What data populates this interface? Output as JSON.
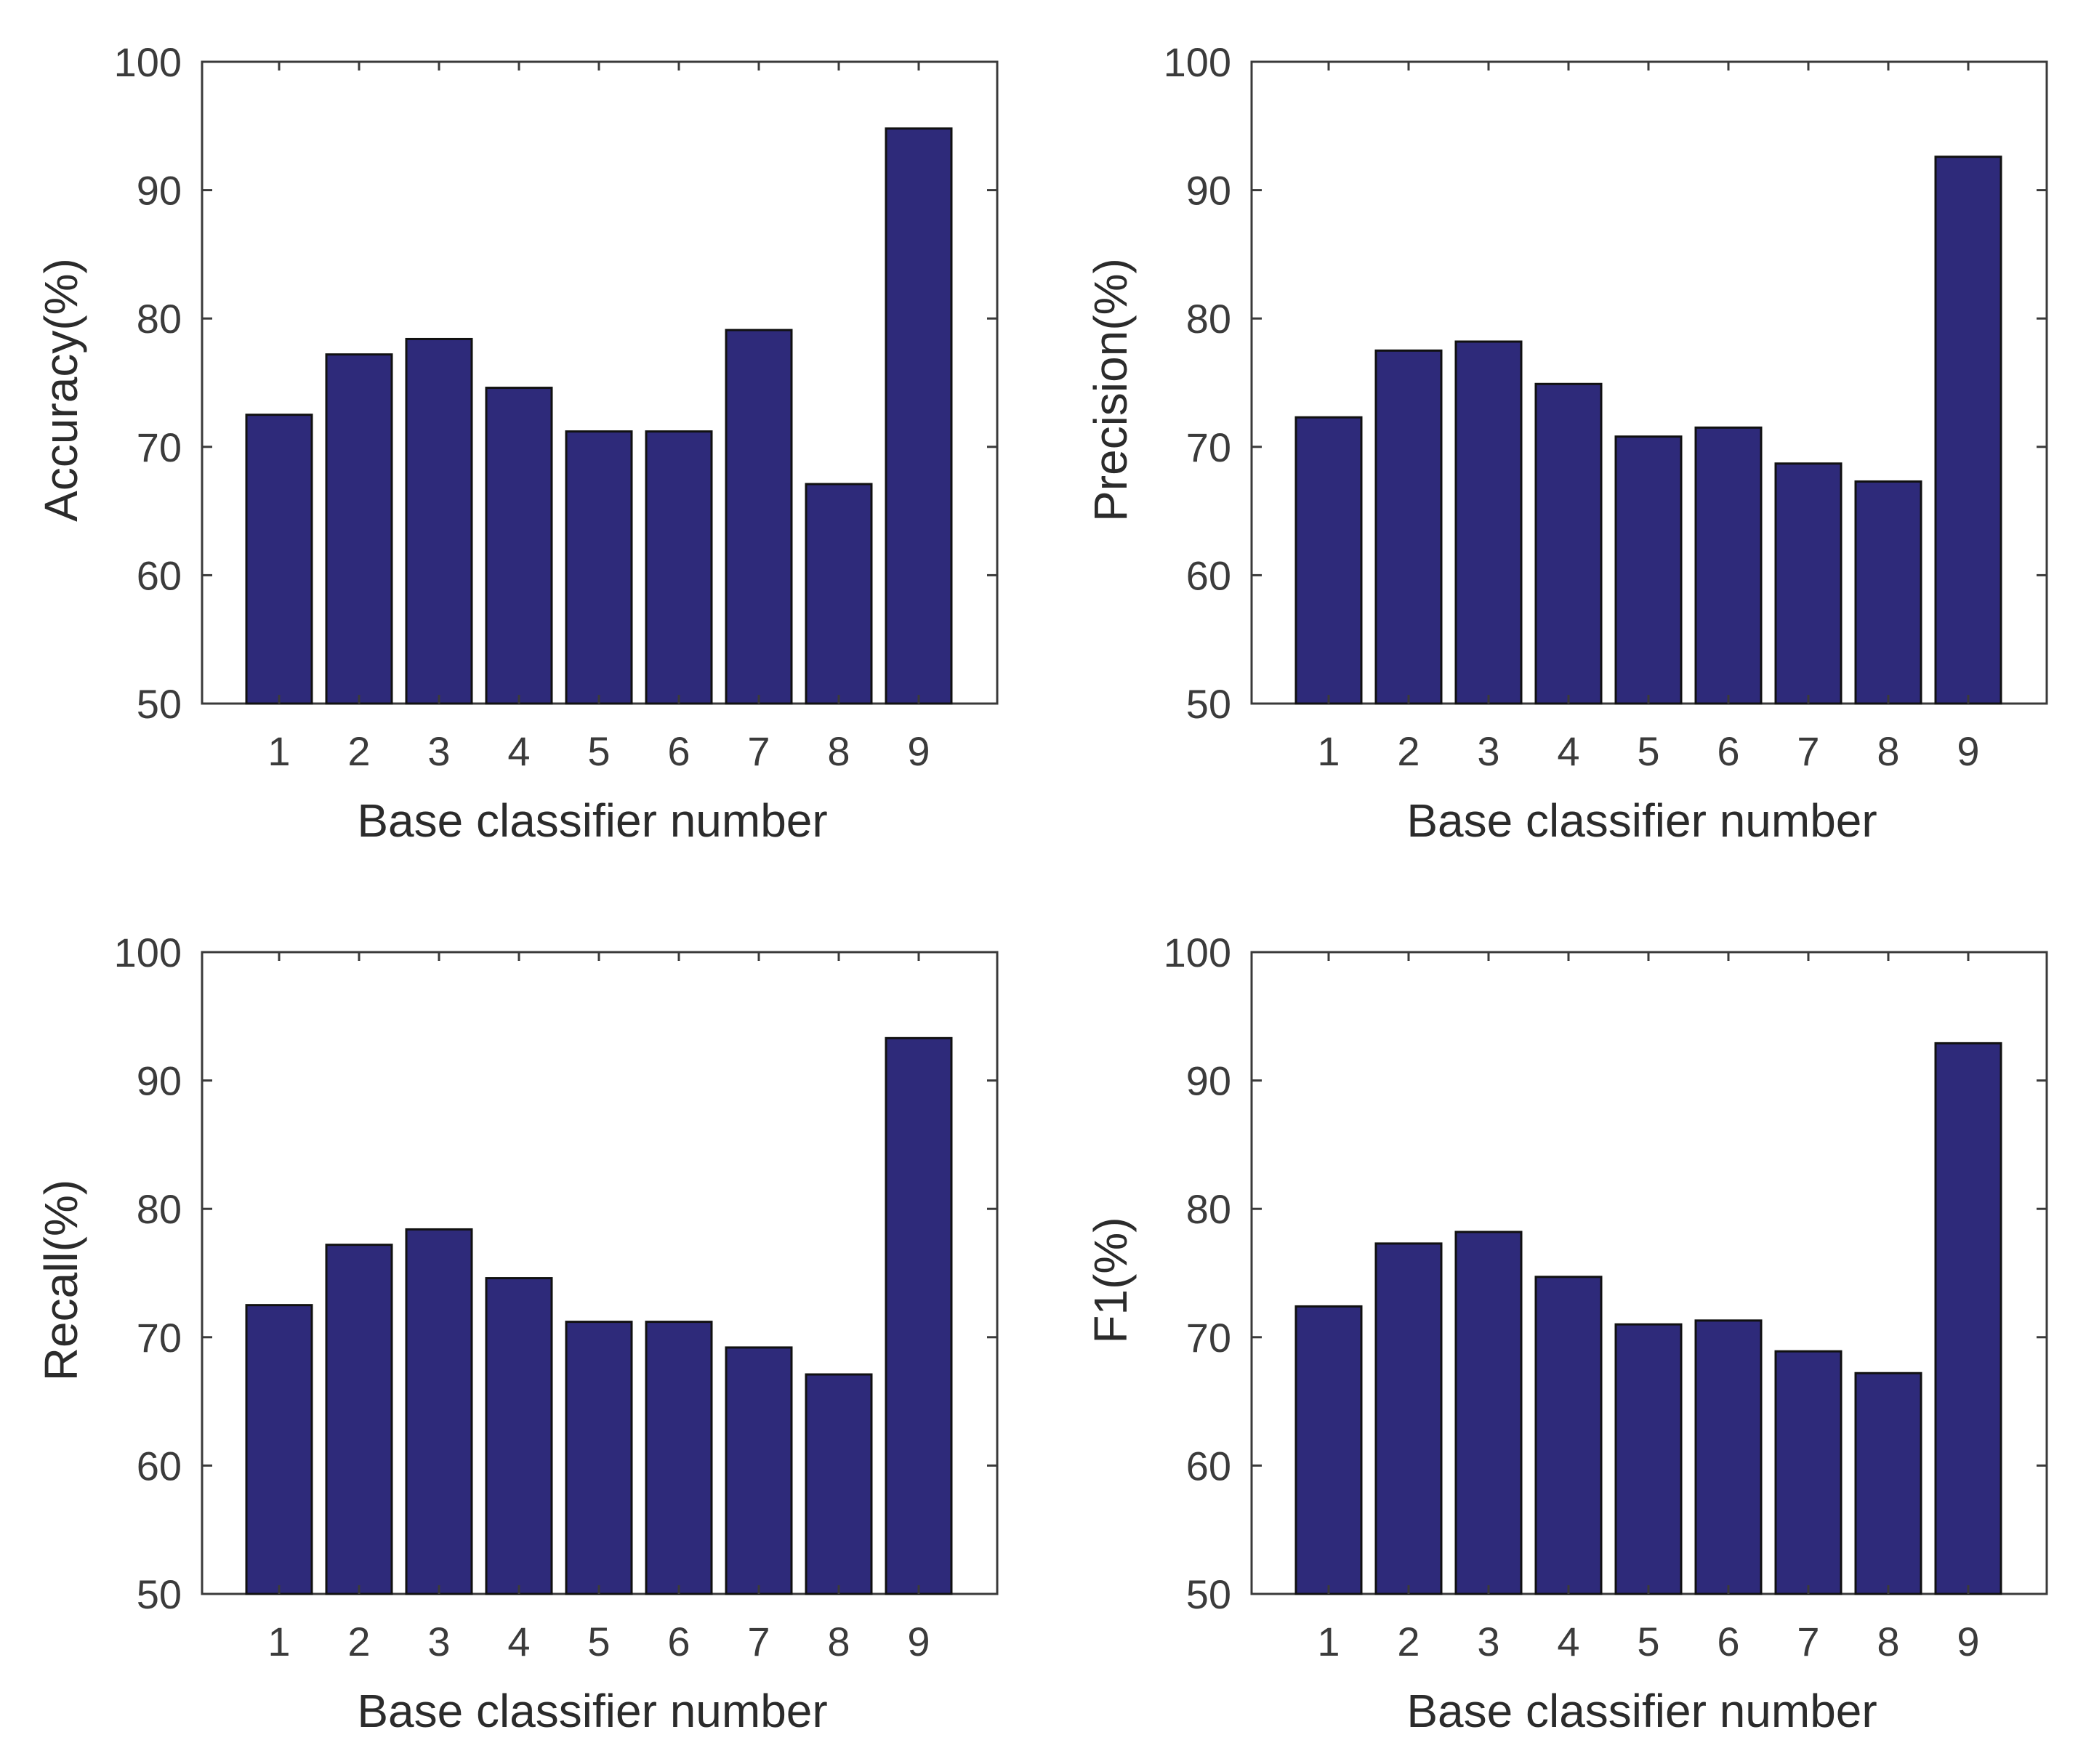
{
  "chart_data": [
    {
      "type": "bar",
      "categories": [
        "1",
        "2",
        "3",
        "4",
        "5",
        "6",
        "7",
        "8",
        "9"
      ],
      "values": [
        72.5,
        77.2,
        78.4,
        74.6,
        71.2,
        71.2,
        79.1,
        67.1,
        94.8
      ],
      "title": "",
      "xlabel": "Base classifier number",
      "ylabel": "Accuracy(%)",
      "ylim": [
        50,
        100
      ],
      "yticks": [
        "50",
        "60",
        "70",
        "80",
        "90",
        "100"
      ],
      "grid": false,
      "color": "#2e2a7a"
    },
    {
      "type": "bar",
      "categories": [
        "1",
        "2",
        "3",
        "4",
        "5",
        "6",
        "7",
        "8",
        "9"
      ],
      "values": [
        72.3,
        77.5,
        78.2,
        74.9,
        70.8,
        71.5,
        68.7,
        67.3,
        92.6
      ],
      "title": "",
      "xlabel": "Base classifier number",
      "ylabel": "Precision(%)",
      "ylim": [
        50,
        100
      ],
      "yticks": [
        "50",
        "60",
        "70",
        "80",
        "90",
        "100"
      ],
      "grid": false,
      "color": "#2e2a7a"
    },
    {
      "type": "bar",
      "categories": [
        "1",
        "2",
        "3",
        "4",
        "5",
        "6",
        "7",
        "8",
        "9"
      ],
      "values": [
        72.5,
        77.2,
        78.4,
        74.6,
        71.2,
        71.2,
        69.2,
        67.1,
        93.3
      ],
      "title": "",
      "xlabel": "Base classifier number",
      "ylabel": "Recall(%)",
      "ylim": [
        50,
        100
      ],
      "yticks": [
        "50",
        "60",
        "70",
        "80",
        "90",
        "100"
      ],
      "grid": false,
      "color": "#2e2a7a"
    },
    {
      "type": "bar",
      "categories": [
        "1",
        "2",
        "3",
        "4",
        "5",
        "6",
        "7",
        "8",
        "9"
      ],
      "values": [
        72.4,
        77.3,
        78.2,
        74.7,
        71.0,
        71.3,
        68.9,
        67.2,
        92.9
      ],
      "title": "",
      "xlabel": "Base classifier number",
      "ylabel": "F1(%)",
      "ylim": [
        50,
        100
      ],
      "yticks": [
        "50",
        "60",
        "70",
        "80",
        "90",
        "100"
      ],
      "grid": false,
      "color": "#2e2a7a"
    }
  ]
}
